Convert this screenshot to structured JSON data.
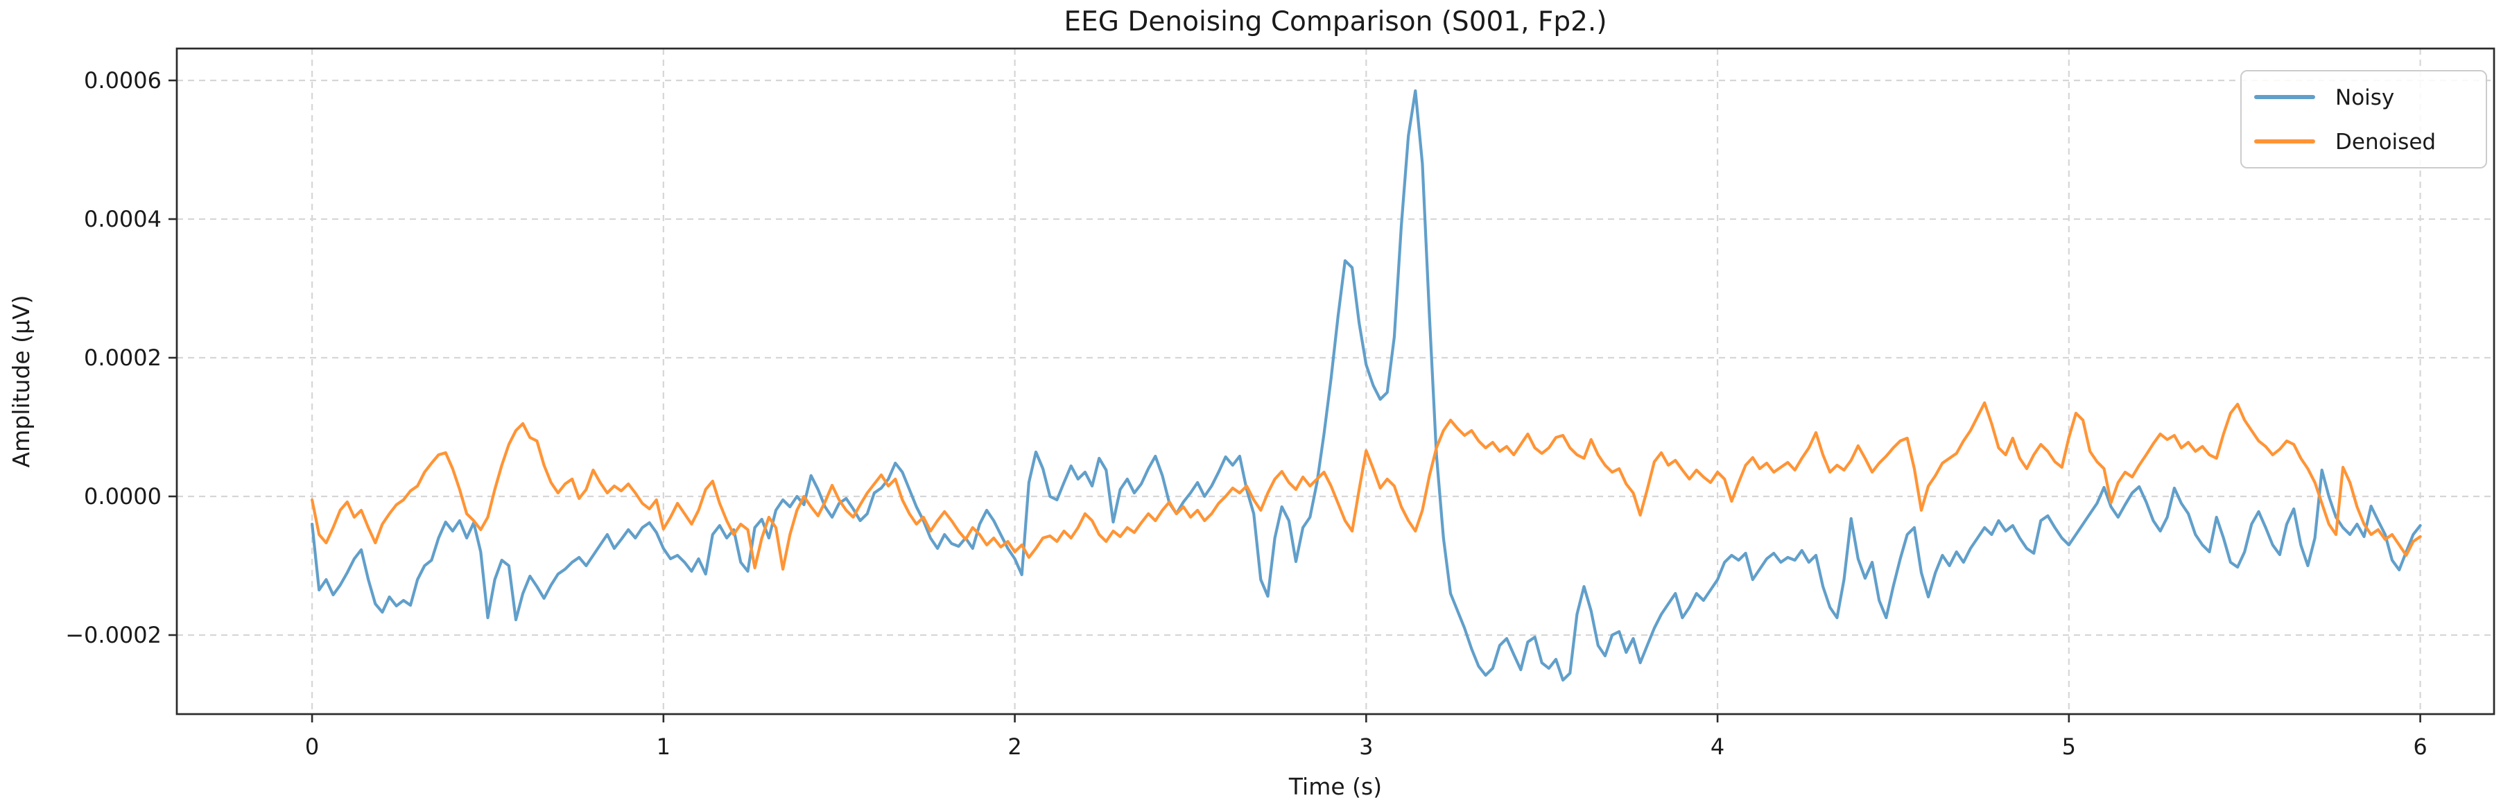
{
  "figure": {
    "title": "EEG Denoising Comparison (S001, Fp2.)"
  },
  "chart_data": {
    "type": "line",
    "title": "EEG Denoising Comparison (S001, Fp2.)",
    "xlabel": "Time (s)",
    "ylabel": "Amplitude (μV)",
    "grid": true,
    "legend_position": "upper right",
    "x_ticks": [
      0,
      1,
      2,
      3,
      4,
      5,
      6
    ],
    "x_tick_labels": [
      "0",
      "1",
      "2",
      "3",
      "4",
      "5",
      "6"
    ],
    "y_ticks": [
      -0.0002,
      0.0,
      0.0002,
      0.0004,
      0.0006
    ],
    "y_tick_labels": [
      "−0.0002",
      "0.0000",
      "0.0002",
      "0.0004",
      "0.0006"
    ],
    "xlim": [
      -0.385,
      6.21
    ],
    "ylim": [
      -0.000314,
      0.000646
    ],
    "x_start": 0,
    "x_step": 0.02,
    "y_scale": 1e-06,
    "series": [
      {
        "name": "Noisy",
        "color": "#619fca",
        "values": [
          -40,
          -135,
          -120,
          -142,
          -128,
          -110,
          -90,
          -77,
          -120,
          -155,
          -167,
          -145,
          -158,
          -150,
          -157,
          -120,
          -100,
          -92,
          -60,
          -37,
          -50,
          -35,
          -60,
          -38,
          -80,
          -175,
          -120,
          -92,
          -100,
          -178,
          -140,
          -115,
          -130,
          -147,
          -128,
          -112,
          -105,
          -95,
          -88,
          -100,
          -85,
          -70,
          -55,
          -75,
          -62,
          -48,
          -60,
          -45,
          -38,
          -52,
          -75,
          -90,
          -85,
          -95,
          -108,
          -90,
          -112,
          -55,
          -42,
          -60,
          -48,
          -95,
          -108,
          -45,
          -33,
          -60,
          -20,
          -5,
          -15,
          0,
          -12,
          30,
          10,
          -15,
          -30,
          -10,
          -3,
          -18,
          -35,
          -25,
          5,
          12,
          25,
          48,
          35,
          10,
          -15,
          -35,
          -60,
          -75,
          -55,
          -68,
          -72,
          -60,
          -75,
          -40,
          -20,
          -35,
          -55,
          -75,
          -90,
          -113,
          20,
          64,
          40,
          0,
          -5,
          20,
          44,
          25,
          35,
          15,
          55,
          38,
          -37,
          10,
          25,
          5,
          18,
          40,
          58,
          30,
          -10,
          -25,
          -8,
          5,
          20,
          0,
          15,
          35,
          57,
          45,
          58,
          10,
          -25,
          -120,
          -144,
          -60,
          -15,
          -35,
          -94,
          -45,
          -30,
          20,
          90,
          170,
          260,
          340,
          330,
          250,
          190,
          160,
          140,
          150,
          230,
          390,
          520,
          585,
          480,
          260,
          60,
          -60,
          -140,
          -165,
          -190,
          -220,
          -245,
          -258,
          -248,
          -215,
          -205,
          -228,
          -250,
          -210,
          -203,
          -240,
          -248,
          -235,
          -265,
          -255,
          -170,
          -130,
          -165,
          -215,
          -230,
          -200,
          -195,
          -225,
          -205,
          -240,
          -215,
          -190,
          -170,
          -155,
          -140,
          -175,
          -160,
          -140,
          -150,
          -135,
          -120,
          -95,
          -85,
          -92,
          -82,
          -120,
          -105,
          -90,
          -82,
          -95,
          -88,
          -92,
          -78,
          -95,
          -85,
          -130,
          -160,
          -175,
          -120,
          -32,
          -90,
          -118,
          -95,
          -150,
          -175,
          -130,
          -90,
          -55,
          -45,
          -110,
          -145,
          -110,
          -85,
          -100,
          -80,
          -95,
          -75,
          -60,
          -45,
          -55,
          -35,
          -50,
          -42,
          -60,
          -75,
          -82,
          -35,
          -28,
          -45,
          -60,
          -70,
          -55,
          -40,
          -25,
          -10,
          13,
          -15,
          -30,
          -12,
          5,
          14,
          -8,
          -35,
          -50,
          -30,
          12,
          -10,
          -25,
          -55,
          -70,
          -80,
          -30,
          -60,
          -95,
          -102,
          -80,
          -40,
          -22,
          -45,
          -70,
          -84,
          -40,
          -18,
          -70,
          -100,
          -60,
          38,
          0,
          -30,
          -45,
          -55,
          -40,
          -58,
          -14,
          -35,
          -55,
          -92,
          -106,
          -80,
          -55,
          -42
        ]
      },
      {
        "name": "Denoised",
        "color": "#ff9435",
        "values": [
          -5,
          -55,
          -67,
          -45,
          -20,
          -8,
          -30,
          -20,
          -45,
          -67,
          -40,
          -25,
          -12,
          -5,
          8,
          15,
          35,
          48,
          60,
          63,
          40,
          10,
          -25,
          -35,
          -48,
          -30,
          10,
          45,
          75,
          95,
          105,
          85,
          80,
          45,
          20,
          5,
          18,
          25,
          -3,
          10,
          38,
          20,
          5,
          15,
          8,
          18,
          5,
          -10,
          -18,
          -5,
          -47,
          -30,
          -10,
          -25,
          -40,
          -20,
          10,
          22,
          -10,
          -35,
          -55,
          -40,
          -48,
          -103,
          -60,
          -30,
          -45,
          -105,
          -55,
          -20,
          0,
          -15,
          -28,
          -8,
          16,
          -5,
          -20,
          -30,
          -12,
          5,
          18,
          31,
          15,
          25,
          -5,
          -25,
          -40,
          -30,
          -50,
          -35,
          -22,
          -35,
          -50,
          -62,
          -45,
          -55,
          -70,
          -60,
          -73,
          -65,
          -80,
          -70,
          -88,
          -75,
          -60,
          -57,
          -65,
          -50,
          -60,
          -45,
          -25,
          -35,
          -55,
          -65,
          -50,
          -58,
          -45,
          -52,
          -38,
          -25,
          -35,
          -20,
          -8,
          -25,
          -15,
          -30,
          -20,
          -35,
          -25,
          -10,
          0,
          12,
          5,
          15,
          -5,
          -20,
          5,
          25,
          36,
          20,
          10,
          28,
          15,
          25,
          35,
          15,
          -10,
          -35,
          -50,
          10,
          66,
          40,
          12,
          25,
          15,
          -15,
          -35,
          -50,
          -20,
          30,
          70,
          95,
          110,
          98,
          88,
          95,
          80,
          70,
          78,
          65,
          72,
          60,
          75,
          90,
          70,
          62,
          70,
          85,
          88,
          70,
          60,
          55,
          82,
          60,
          45,
          35,
          40,
          18,
          5,
          -27,
          10,
          50,
          63,
          45,
          52,
          38,
          25,
          38,
          28,
          20,
          35,
          25,
          -7,
          20,
          45,
          56,
          40,
          48,
          35,
          42,
          49,
          38,
          55,
          70,
          92,
          60,
          35,
          45,
          38,
          52,
          73,
          55,
          35,
          48,
          58,
          70,
          80,
          84,
          40,
          -20,
          15,
          30,
          48,
          55,
          62,
          80,
          95,
          115,
          135,
          105,
          70,
          60,
          84,
          55,
          40,
          60,
          75,
          65,
          50,
          42,
          85,
          120,
          110,
          65,
          50,
          40,
          -9,
          20,
          35,
          28,
          45,
          60,
          76,
          90,
          82,
          88,
          70,
          78,
          65,
          72,
          60,
          55,
          90,
          120,
          133,
          110,
          95,
          80,
          72,
          60,
          68,
          80,
          75,
          55,
          40,
          20,
          -10,
          -40,
          -55,
          42,
          20,
          -15,
          -40,
          -55,
          -48,
          -62,
          -55,
          -70,
          -85,
          -65,
          -58
        ]
      }
    ]
  },
  "legend": {
    "items": [
      {
        "label": "Noisy",
        "color": "#619fca"
      },
      {
        "label": "Denoised",
        "color": "#ff9435"
      }
    ]
  },
  "style": {
    "spine_color": "#2b2b2b",
    "grid_color": "#d6d6d6",
    "background": "#ffffff"
  }
}
